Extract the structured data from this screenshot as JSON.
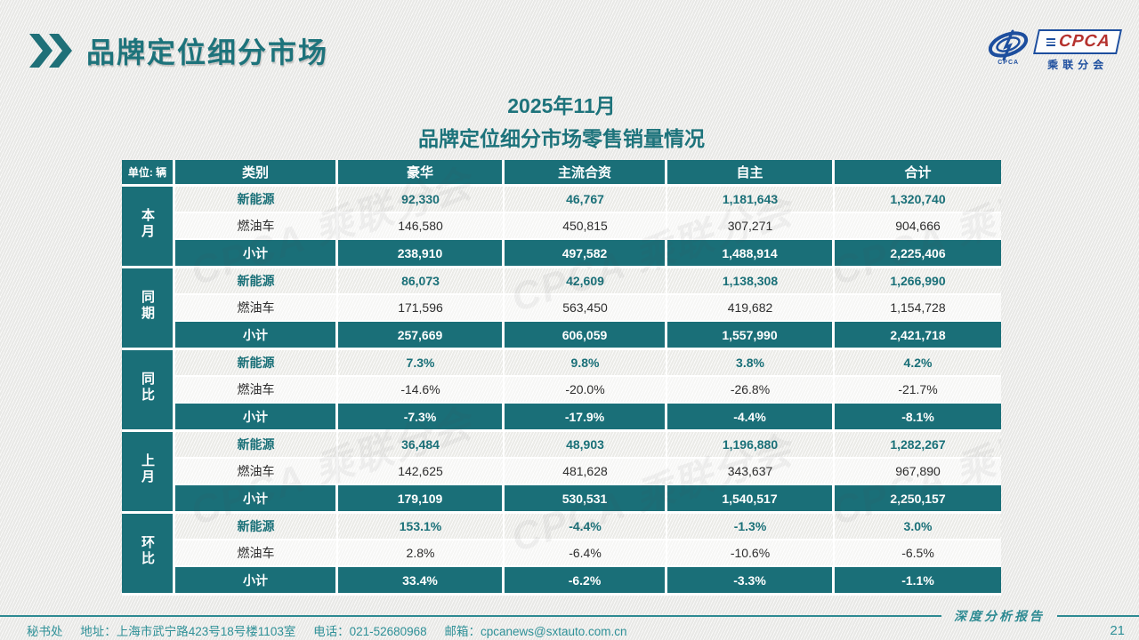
{
  "page": {
    "title": "品牌定位细分市场",
    "subtitle_line1": "2025年11月",
    "subtitle_line2": "品牌定位细分市场零售销量情况",
    "report_label": "深度分析报告",
    "page_number": "21"
  },
  "logo": {
    "cpca": "CPCA",
    "cn": "乘联分会",
    "icon_caption": "CPCA"
  },
  "footer": {
    "dept": "秘书处",
    "address": "地址：上海市武宁路423号18号楼1103室",
    "phone": "电话：021-52680968",
    "email": "邮箱：cpcanews@sxtauto.com.cn"
  },
  "decor": {
    "watermark_text": "CPCA 乘联分会"
  },
  "colors": {
    "teal": "#1a6f78",
    "title_teal": "#1d737b",
    "footer_teal": "#2e9097",
    "logo_blue": "#1d4e9e",
    "logo_red": "#b5322e",
    "row_light": "#f3f3f0",
    "row_white": "#fcfcfb"
  },
  "table": {
    "unit_label": "单位: 辆",
    "columns": [
      "类别",
      "豪华",
      "主流合资",
      "自主",
      "合计"
    ],
    "groups": [
      {
        "label": "本月",
        "rows": [
          {
            "category": "新能源",
            "values": [
              "92,330",
              "46,767",
              "1,181,643",
              "1,320,740"
            ]
          },
          {
            "category": "燃油车",
            "values": [
              "146,580",
              "450,815",
              "307,271",
              "904,666"
            ]
          },
          {
            "category": "小计",
            "values": [
              "238,910",
              "497,582",
              "1,488,914",
              "2,225,406"
            ]
          }
        ]
      },
      {
        "label": "同期",
        "rows": [
          {
            "category": "新能源",
            "values": [
              "86,073",
              "42,609",
              "1,138,308",
              "1,266,990"
            ]
          },
          {
            "category": "燃油车",
            "values": [
              "171,596",
              "563,450",
              "419,682",
              "1,154,728"
            ]
          },
          {
            "category": "小计",
            "values": [
              "257,669",
              "606,059",
              "1,557,990",
              "2,421,718"
            ]
          }
        ]
      },
      {
        "label": "同比",
        "rows": [
          {
            "category": "新能源",
            "values": [
              "7.3%",
              "9.8%",
              "3.8%",
              "4.2%"
            ]
          },
          {
            "category": "燃油车",
            "values": [
              "-14.6%",
              "-20.0%",
              "-26.8%",
              "-21.7%"
            ]
          },
          {
            "category": "小计",
            "values": [
              "-7.3%",
              "-17.9%",
              "-4.4%",
              "-8.1%"
            ]
          }
        ]
      },
      {
        "label": "上月",
        "rows": [
          {
            "category": "新能源",
            "values": [
              "36,484",
              "48,903",
              "1,196,880",
              "1,282,267"
            ]
          },
          {
            "category": "燃油车",
            "values": [
              "142,625",
              "481,628",
              "343,637",
              "967,890"
            ]
          },
          {
            "category": "小计",
            "values": [
              "179,109",
              "530,531",
              "1,540,517",
              "2,250,157"
            ]
          }
        ]
      },
      {
        "label": "环比",
        "rows": [
          {
            "category": "新能源",
            "values": [
              "153.1%",
              "-4.4%",
              "-1.3%",
              "3.0%"
            ]
          },
          {
            "category": "燃油车",
            "values": [
              "2.8%",
              "-6.4%",
              "-10.6%",
              "-6.5%"
            ]
          },
          {
            "category": "小计",
            "values": [
              "33.4%",
              "-6.2%",
              "-3.3%",
              "-1.1%"
            ]
          }
        ]
      }
    ]
  }
}
